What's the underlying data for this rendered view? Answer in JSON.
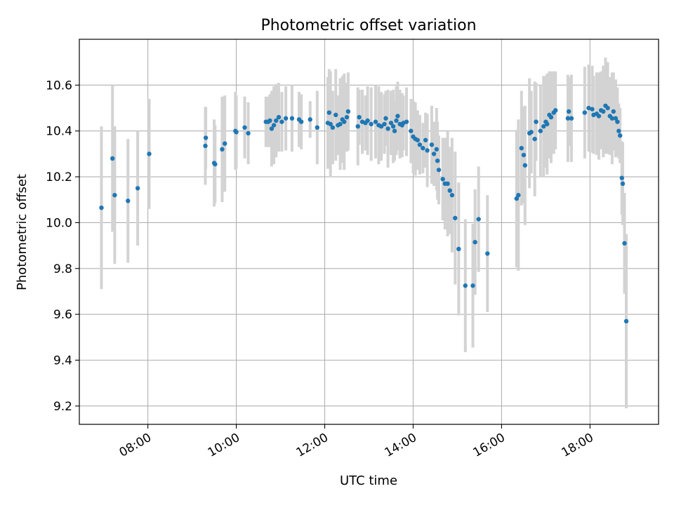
{
  "chart_data": {
    "type": "scatter",
    "title": "Photometric offset variation",
    "xlabel": "UTC time",
    "ylabel": "Photometric offset",
    "x_unit": "hours (UTC, decimal)",
    "xlim": [
      6.45,
      19.55
    ],
    "ylim": [
      9.12,
      10.8
    ],
    "yticks": [
      9.2,
      9.4,
      9.6,
      9.8,
      10.0,
      10.2,
      10.4,
      10.6
    ],
    "xticks": [
      {
        "t": 8,
        "label": "08:00"
      },
      {
        "t": 10,
        "label": "10:00"
      },
      {
        "t": 12,
        "label": "12:00"
      },
      {
        "t": 14,
        "label": "14:00"
      },
      {
        "t": 16,
        "label": "16:00"
      },
      {
        "t": 18,
        "label": "18:00"
      }
    ],
    "grid": true,
    "point_color": "#1f77b4",
    "errorbar_color": "#d3d3d3",
    "points": [
      [
        6.95,
        10.065,
        0.355
      ],
      [
        7.2,
        10.28,
        0.32
      ],
      [
        7.25,
        10.12,
        0.3
      ],
      [
        7.55,
        10.095,
        0.27
      ],
      [
        7.77,
        10.15,
        0.25
      ],
      [
        8.03,
        10.3,
        0.24
      ],
      [
        9.3,
        10.335,
        0.17
      ],
      [
        9.31,
        10.37,
        0.135
      ],
      [
        9.5,
        10.26,
        0.19
      ],
      [
        9.52,
        10.255,
        0.17
      ],
      [
        9.68,
        10.32,
        0.23
      ],
      [
        9.74,
        10.345,
        0.21
      ],
      [
        9.98,
        10.4,
        0.17
      ],
      [
        10.0,
        10.395,
        0.16
      ],
      [
        10.19,
        10.415,
        0.135
      ],
      [
        10.27,
        10.39,
        0.135
      ],
      [
        10.67,
        10.44,
        0.11
      ],
      [
        10.72,
        10.44,
        0.11
      ],
      [
        10.76,
        10.445,
        0.115
      ],
      [
        10.8,
        10.41,
        0.165
      ],
      [
        10.85,
        10.425,
        0.17
      ],
      [
        10.9,
        10.445,
        0.16
      ],
      [
        10.96,
        10.46,
        0.15
      ],
      [
        11.03,
        10.44,
        0.13
      ],
      [
        11.12,
        10.455,
        0.14
      ],
      [
        11.26,
        10.455,
        0.145
      ],
      [
        11.42,
        10.45,
        0.12
      ],
      [
        11.47,
        10.44,
        0.12
      ],
      [
        11.67,
        10.45,
        0.08
      ],
      [
        11.83,
        10.415,
        0.16
      ],
      [
        12.07,
        10.435,
        0.2
      ],
      [
        12.1,
        10.48,
        0.19
      ],
      [
        12.13,
        10.43,
        0.23
      ],
      [
        12.18,
        10.415,
        0.16
      ],
      [
        12.25,
        10.47,
        0.2
      ],
      [
        12.3,
        10.425,
        0.13
      ],
      [
        12.35,
        10.43,
        0.2
      ],
      [
        12.4,
        10.45,
        0.19
      ],
      [
        12.44,
        10.44,
        0.21
      ],
      [
        12.5,
        10.46,
        0.15
      ],
      [
        12.53,
        10.485,
        0.17
      ],
      [
        12.75,
        10.42,
        0.17
      ],
      [
        12.78,
        10.46,
        0.12
      ],
      [
        12.85,
        10.44,
        0.14
      ],
      [
        12.92,
        10.435,
        0.12
      ],
      [
        12.97,
        10.445,
        0.15
      ],
      [
        13.05,
        10.43,
        0.16
      ],
      [
        13.15,
        10.44,
        0.16
      ],
      [
        13.22,
        10.425,
        0.17
      ],
      [
        13.28,
        10.42,
        0.15
      ],
      [
        13.35,
        10.43,
        0.13
      ],
      [
        13.38,
        10.455,
        0.12
      ],
      [
        13.43,
        10.41,
        0.17
      ],
      [
        13.5,
        10.435,
        0.14
      ],
      [
        13.55,
        10.42,
        0.16
      ],
      [
        13.58,
        10.4,
        0.13
      ],
      [
        13.62,
        10.445,
        0.15
      ],
      [
        13.65,
        10.465,
        0.15
      ],
      [
        13.7,
        10.43,
        0.15
      ],
      [
        13.75,
        10.425,
        0.14
      ],
      [
        13.78,
        10.435,
        0.12
      ],
      [
        13.85,
        10.44,
        0.15
      ],
      [
        13.95,
        10.4,
        0.14
      ],
      [
        14.0,
        10.375,
        0.16
      ],
      [
        14.05,
        10.365,
        0.16
      ],
      [
        14.1,
        10.36,
        0.13
      ],
      [
        14.15,
        10.34,
        0.13
      ],
      [
        14.22,
        10.325,
        0.11
      ],
      [
        14.28,
        10.36,
        0.12
      ],
      [
        14.32,
        10.315,
        0.16
      ],
      [
        14.42,
        10.34,
        0.17
      ],
      [
        14.47,
        10.3,
        0.14
      ],
      [
        14.53,
        10.32,
        0.18
      ],
      [
        14.55,
        10.27,
        0.17
      ],
      [
        14.58,
        10.23,
        0.15
      ],
      [
        14.67,
        10.19,
        0.18
      ],
      [
        14.72,
        10.17,
        0.2
      ],
      [
        14.78,
        10.17,
        0.23
      ],
      [
        14.83,
        10.14,
        0.19
      ],
      [
        14.88,
        10.12,
        0.25
      ],
      [
        14.95,
        10.02,
        0.29
      ],
      [
        15.03,
        9.885,
        0.29
      ],
      [
        15.18,
        9.725,
        0.29
      ],
      [
        15.35,
        9.725,
        0.27
      ],
      [
        15.4,
        9.915,
        0.23
      ],
      [
        15.48,
        10.015,
        0.23
      ],
      [
        15.68,
        9.865,
        0.255
      ],
      [
        16.34,
        10.105,
        0.3
      ],
      [
        16.38,
        10.12,
        0.33
      ],
      [
        16.45,
        10.325,
        0.25
      ],
      [
        16.5,
        10.295,
        0.21
      ],
      [
        16.53,
        10.25,
        0.26
      ],
      [
        16.63,
        10.39,
        0.24
      ],
      [
        16.67,
        10.395,
        0.18
      ],
      [
        16.75,
        10.365,
        0.25
      ],
      [
        16.78,
        10.44,
        0.17
      ],
      [
        16.88,
        10.4,
        0.2
      ],
      [
        16.95,
        10.42,
        0.22
      ],
      [
        17.0,
        10.44,
        0.2
      ],
      [
        17.03,
        10.43,
        0.22
      ],
      [
        17.08,
        10.47,
        0.19
      ],
      [
        17.12,
        10.46,
        0.2
      ],
      [
        17.18,
        10.48,
        0.18
      ],
      [
        17.22,
        10.49,
        0.17
      ],
      [
        17.5,
        10.455,
        0.19
      ],
      [
        17.52,
        10.485,
        0.15
      ],
      [
        17.58,
        10.455,
        0.19
      ],
      [
        17.88,
        10.48,
        0.2
      ],
      [
        17.97,
        10.5,
        0.19
      ],
      [
        18.05,
        10.495,
        0.19
      ],
      [
        18.08,
        10.47,
        0.17
      ],
      [
        18.15,
        10.475,
        0.18
      ],
      [
        18.2,
        10.465,
        0.19
      ],
      [
        18.25,
        10.49,
        0.17
      ],
      [
        18.3,
        10.485,
        0.2
      ],
      [
        18.35,
        10.51,
        0.21
      ],
      [
        18.4,
        10.5,
        0.2
      ],
      [
        18.45,
        10.465,
        0.17
      ],
      [
        18.5,
        10.455,
        0.2
      ],
      [
        18.53,
        10.485,
        0.17
      ],
      [
        18.58,
        10.455,
        0.17
      ],
      [
        18.62,
        10.44,
        0.15
      ],
      [
        18.65,
        10.4,
        0.12
      ],
      [
        18.68,
        10.38,
        0.12
      ],
      [
        18.72,
        10.195,
        0.16
      ],
      [
        18.74,
        10.17,
        0.18
      ],
      [
        18.78,
        9.91,
        0.22
      ],
      [
        18.82,
        9.57,
        0.38
      ]
    ]
  }
}
